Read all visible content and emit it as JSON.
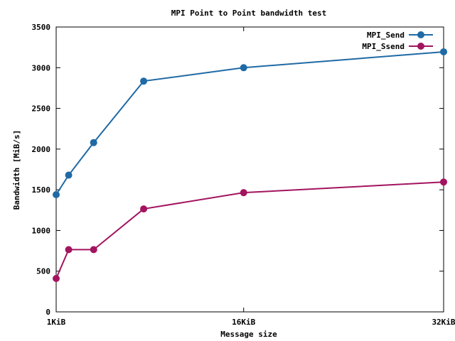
{
  "chart_data": {
    "type": "line",
    "title": "MPI Point to Point bandwidth test",
    "xlabel": "Message size",
    "ylabel": "Bandwidth [MiB/s]",
    "xlim": [
      1,
      32
    ],
    "ylim": [
      0,
      3500
    ],
    "x_unit": "KiB",
    "x_ticks": [
      {
        "value": 1,
        "label": "1KiB"
      },
      {
        "value": 16,
        "label": "16KiB"
      },
      {
        "value": 32,
        "label": "32KiB"
      }
    ],
    "y_ticks": [
      0,
      500,
      1000,
      1500,
      2000,
      2500,
      3000,
      3500
    ],
    "grid": false,
    "legend_position": "top-right",
    "series": [
      {
        "name": "MPI_Send",
        "color": "#1f6aa5",
        "x": [
          1,
          2,
          4,
          8,
          16,
          32
        ],
        "y": [
          1440,
          1680,
          2080,
          2835,
          3000,
          3195
        ]
      },
      {
        "name": "MPI_Ssend",
        "color": "#a3145f",
        "x": [
          1,
          2,
          4,
          8,
          16,
          32
        ],
        "y": [
          410,
          765,
          765,
          1265,
          1465,
          1595
        ]
      }
    ]
  }
}
